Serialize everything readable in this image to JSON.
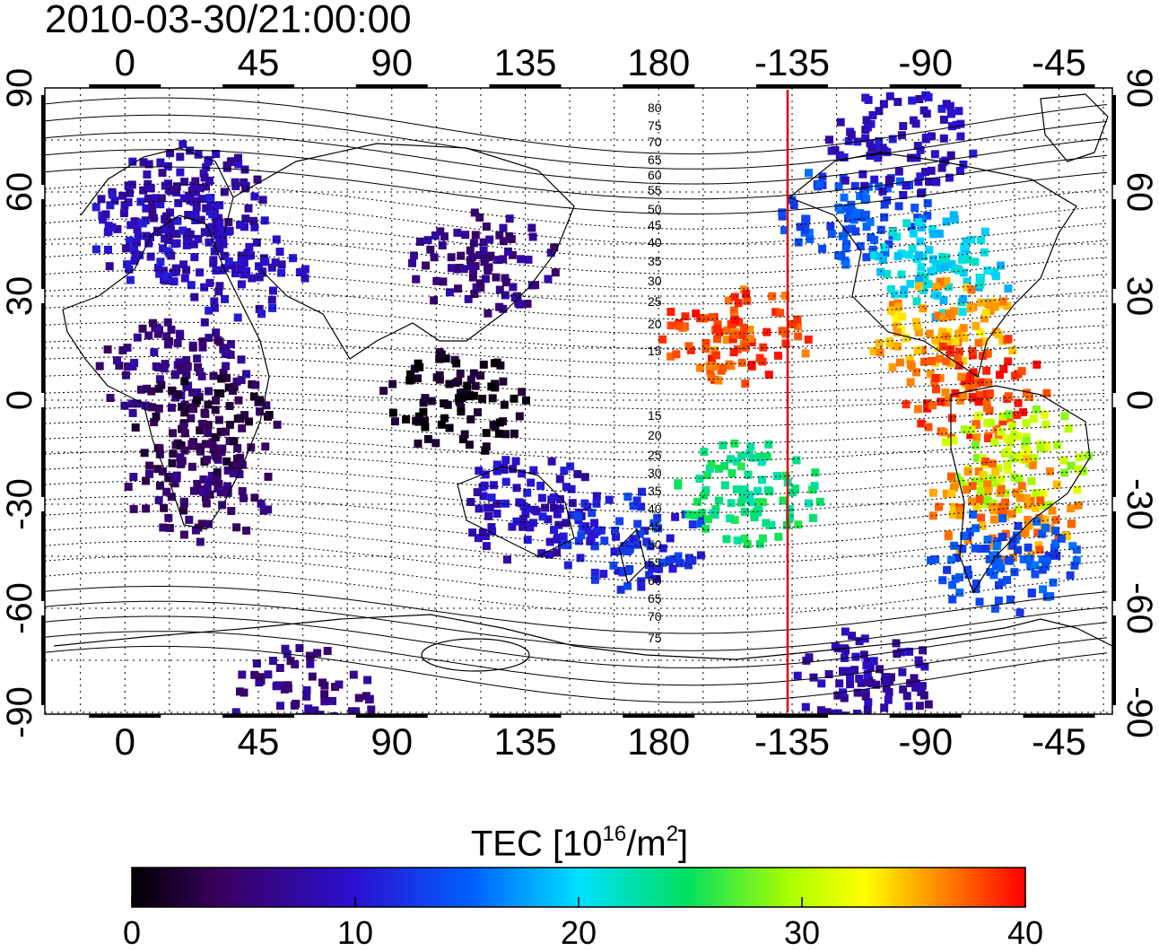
{
  "map": {
    "timestamp": "2010-03-30/21:00:00",
    "x_ticks_top": [
      "0",
      "45",
      "90",
      "135",
      "180",
      "-135",
      "-90",
      "-45"
    ],
    "x_ticks_bottom": [
      "0",
      "45",
      "90",
      "135",
      "180",
      "-135",
      "-90",
      "-45"
    ],
    "y_ticks_left": [
      "90",
      "60",
      "30",
      "0",
      "-30",
      "-60",
      "-90"
    ],
    "y_ticks_right": [
      "90",
      "60",
      "30",
      "0",
      "-30",
      "-60",
      "-90"
    ],
    "magnetic_lat_labels_north": [
      "80",
      "75",
      "70",
      "65",
      "60",
      "55",
      "50",
      "45",
      "40",
      "35",
      "30",
      "25",
      "20",
      "15"
    ],
    "magnetic_lat_labels_south": [
      "15",
      "20",
      "25",
      "30",
      "35",
      "40",
      "45",
      "50",
      "55",
      "60",
      "65",
      "70",
      "75"
    ],
    "terminator_longitude": -135,
    "colors": {
      "terminator": "#e00000"
    },
    "colorbar": {
      "title_main": "TEC  [10",
      "title_exp1": "16",
      "title_mid": "/m",
      "title_exp2": "2",
      "title_end": "]",
      "ticks": [
        "0",
        "10",
        "20",
        "30",
        "40"
      ],
      "range": [
        0,
        40
      ]
    },
    "tec_regions": [
      {
        "lon": 10,
        "lat": 50,
        "value": 9
      },
      {
        "lon": 20,
        "lat": 60,
        "value": 8
      },
      {
        "lon": 35,
        "lat": 40,
        "value": 9
      },
      {
        "lon": 15,
        "lat": 10,
        "value": 6
      },
      {
        "lon": 25,
        "lat": -25,
        "value": 5
      },
      {
        "lon": 25,
        "lat": -5,
        "value": 3
      },
      {
        "lon": 110,
        "lat": 0,
        "value": 1
      },
      {
        "lon": 120,
        "lat": 40,
        "value": 6
      },
      {
        "lon": 135,
        "lat": -30,
        "value": 9
      },
      {
        "lon": 170,
        "lat": -40,
        "value": 12
      },
      {
        "lon": -115,
        "lat": 55,
        "value": 14
      },
      {
        "lon": -85,
        "lat": 40,
        "value": 20
      },
      {
        "lon": -85,
        "lat": 20,
        "value": 35
      },
      {
        "lon": -75,
        "lat": 5,
        "value": 38
      },
      {
        "lon": -60,
        "lat": -15,
        "value": 30
      },
      {
        "lon": -65,
        "lat": -30,
        "value": 36
      },
      {
        "lon": -65,
        "lat": -45,
        "value": 14
      },
      {
        "lon": -155,
        "lat": 20,
        "value": 38
      },
      {
        "lon": -150,
        "lat": -25,
        "value": 24
      },
      {
        "lon": -100,
        "lat": 75,
        "value": 9
      },
      {
        "lon": -110,
        "lat": -80,
        "value": 8
      },
      {
        "lon": 60,
        "lat": -85,
        "value": 6
      }
    ]
  }
}
